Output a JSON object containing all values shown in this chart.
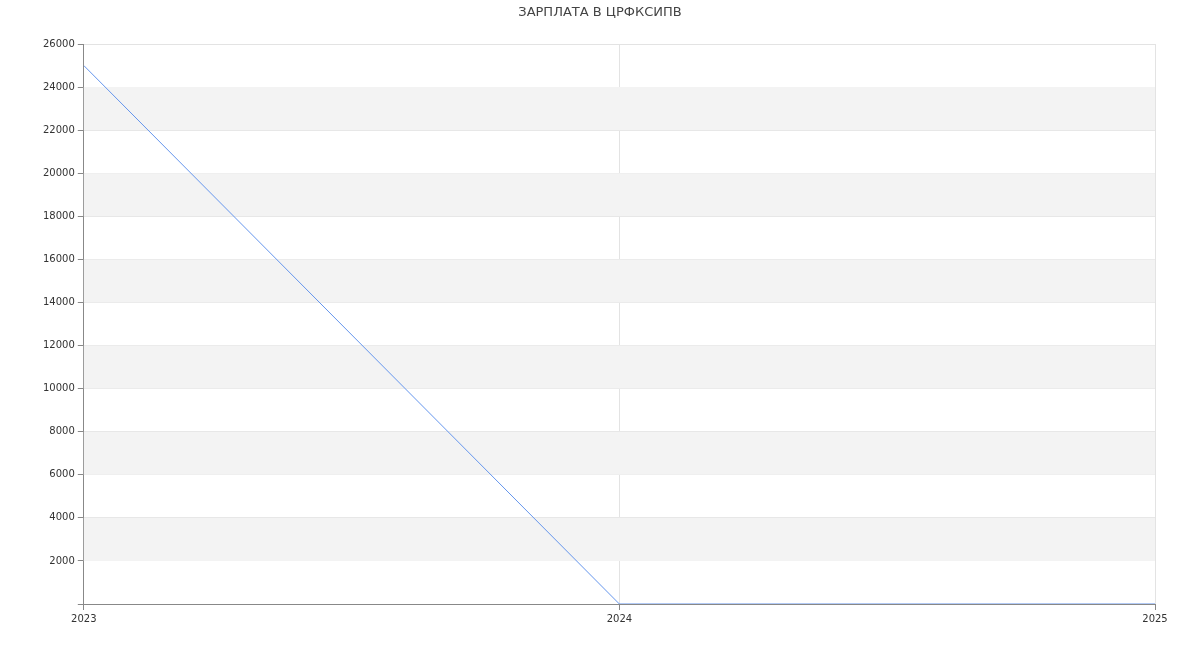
{
  "chart_data": {
    "type": "line",
    "title": "ЗАРПЛАТА В ЦРФКСИПВ",
    "x": [
      2023,
      2024,
      2025
    ],
    "series": [
      {
        "color": "#6495ed",
        "values": [
          25000,
          0,
          0
        ]
      }
    ],
    "xlim": [
      2023,
      2025
    ],
    "xticks": [
      2023,
      2024,
      2025
    ],
    "ylim": [
      0,
      26000
    ],
    "yticks": [
      {
        "value": 0,
        "label": null
      },
      2000,
      4000,
      6000,
      8000,
      10000,
      12000,
      14000,
      16000,
      18000,
      20000,
      22000,
      24000,
      26000
    ],
    "grid": true,
    "legend": false,
    "marker": "none",
    "line_style": "solid"
  }
}
